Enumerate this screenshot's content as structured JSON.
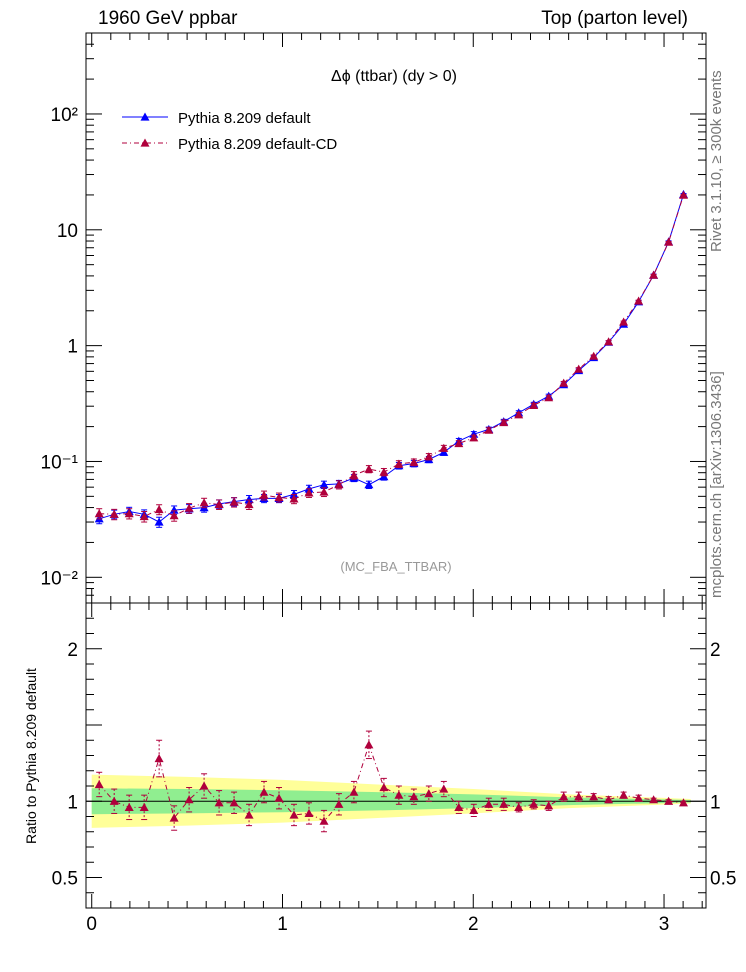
{
  "header": {
    "left": "1960 GeV ppbar",
    "right": "Top (parton level)"
  },
  "side_text": {
    "rivet": "Rivet 3.1.10, ≥ 300k events",
    "mcplots": "mcplots.cern.ch [arXiv:1306.3436]"
  },
  "chart_data": [
    {
      "type": "line",
      "title": "Δϕ (ttbar) (dy > 0)",
      "watermark": "(MC_FBA_TTBAR)",
      "yscale": "log",
      "ylim": [
        0.006,
        500
      ],
      "xlim": [
        -0.03,
        3.22
      ],
      "y_ticks": [
        {
          "v": 0.01,
          "label": "10⁻²"
        },
        {
          "v": 0.1,
          "label": "10⁻¹"
        },
        {
          "v": 1,
          "label": "1"
        },
        {
          "v": 10,
          "label": "10"
        },
        {
          "v": 100,
          "label": "10²"
        }
      ],
      "legend": {
        "position": "top-left"
      },
      "x": [
        0.0393,
        0.1178,
        0.1963,
        0.2749,
        0.3534,
        0.432,
        0.5105,
        0.589,
        0.6676,
        0.7461,
        0.8247,
        0.9032,
        0.9817,
        1.0603,
        1.1388,
        1.2174,
        1.2959,
        1.3744,
        1.453,
        1.5315,
        1.6101,
        1.6886,
        1.7671,
        1.8457,
        1.9242,
        2.0028,
        2.0813,
        2.1598,
        2.2384,
        2.3169,
        2.3955,
        2.474,
        2.5525,
        2.6311,
        2.7096,
        2.7882,
        2.8667,
        2.9452,
        3.0238,
        3.1023
      ],
      "series": [
        {
          "name": "Pythia 8.209 default",
          "color": "#0000ff",
          "marker": "triangle",
          "line": "solid",
          "values": [
            0.032,
            0.035,
            0.037,
            0.035,
            0.03,
            0.038,
            0.039,
            0.04,
            0.043,
            0.045,
            0.047,
            0.048,
            0.048,
            0.052,
            0.058,
            0.063,
            0.064,
            0.072,
            0.063,
            0.074,
            0.092,
            0.096,
            0.104,
            0.12,
            0.15,
            0.172,
            0.189,
            0.221,
            0.263,
            0.312,
            0.367,
            0.46,
            0.61,
            0.79,
            1.07,
            1.53,
            2.39,
            4.06,
            7.87,
            20.2
          ],
          "errors": [
            0.003,
            0.003,
            0.0032,
            0.0032,
            0.003,
            0.0033,
            0.0034,
            0.0035,
            0.0036,
            0.0037,
            0.0038,
            0.0039,
            0.0039,
            0.0041,
            0.0043,
            0.0046,
            0.0046,
            0.005,
            0.0046,
            0.005,
            0.006,
            0.0061,
            0.0064,
            0.007,
            0.008,
            0.009,
            0.009,
            0.01,
            0.011,
            0.012,
            0.014,
            0.016,
            0.02,
            0.024,
            0.03,
            0.04,
            0.06,
            0.09,
            0.16,
            0.35
          ]
        },
        {
          "name": "Pythia 8.209 default-CD",
          "color": "#b0003c",
          "marker": "triangle",
          "line": "dash-dot",
          "values": [
            0.0355,
            0.035,
            0.0355,
            0.0335,
            0.0385,
            0.034,
            0.0395,
            0.044,
            0.0425,
            0.0445,
            0.0425,
            0.051,
            0.049,
            0.0475,
            0.0535,
            0.0545,
            0.063,
            0.076,
            0.086,
            0.081,
            0.095,
            0.0985,
            0.11,
            0.13,
            0.143,
            0.16,
            0.186,
            0.217,
            0.253,
            0.305,
            0.356,
            0.475,
            0.627,
            0.81,
            1.08,
            1.6,
            2.43,
            4.06,
            7.83,
            19.9
          ],
          "errors": [
            0.0036,
            0.0036,
            0.0036,
            0.0035,
            0.0038,
            0.0035,
            0.0038,
            0.0041,
            0.004,
            0.0041,
            0.004,
            0.0045,
            0.0044,
            0.0043,
            0.0046,
            0.0047,
            0.0051,
            0.0057,
            0.0061,
            0.0059,
            0.0065,
            0.0066,
            0.007,
            0.0077,
            0.0082,
            0.0087,
            0.0095,
            0.0103,
            0.0112,
            0.0124,
            0.0135,
            0.0157,
            0.0183,
            0.021,
            0.0245,
            0.03,
            0.04,
            0.06,
            0.1,
            0.2
          ]
        }
      ]
    },
    {
      "type": "line",
      "ylabel": "Ratio to Pythia 8.209 default",
      "ylim": [
        0.3,
        2.3
      ],
      "xlim": [
        -0.03,
        3.22
      ],
      "y_ticks": [
        {
          "v": 0.5,
          "label": "0.5"
        },
        {
          "v": 1,
          "label": "1"
        },
        {
          "v": 2,
          "label": "2"
        }
      ],
      "x_ticks": [
        {
          "v": 0,
          "label": "0"
        },
        {
          "v": 1,
          "label": "1"
        },
        {
          "v": 2,
          "label": "2"
        },
        {
          "v": 3,
          "label": "3"
        }
      ],
      "reference_line": 1,
      "bands": {
        "inner_color": "#90ee90",
        "outer_color": "#ffff99",
        "x": [
          0.0,
          0.5,
          1.0,
          1.5,
          2.0,
          2.5,
          3.0,
          3.14
        ],
        "inner_halfwidth": [
          0.085,
          0.08,
          0.072,
          0.06,
          0.045,
          0.025,
          0.012,
          0.008
        ],
        "outer_halfwidth": [
          0.175,
          0.16,
          0.14,
          0.11,
          0.08,
          0.045,
          0.022,
          0.015
        ]
      },
      "series": [
        {
          "name": "Pythia 8.209 default-CD",
          "color": "#b0003c",
          "marker": "triangle",
          "line": "dash-dot",
          "values": [
            1.11,
            1.0,
            0.96,
            0.96,
            1.28,
            0.89,
            1.01,
            1.1,
            0.99,
            0.99,
            0.91,
            1.06,
            1.02,
            0.91,
            0.92,
            0.87,
            0.98,
            1.06,
            1.37,
            1.09,
            1.04,
            1.03,
            1.05,
            1.08,
            0.96,
            0.94,
            0.98,
            0.98,
            0.96,
            0.98,
            0.97,
            1.03,
            1.03,
            1.03,
            1.01,
            1.04,
            1.02,
            1.01,
            1.0,
            0.99
          ],
          "errors": [
            0.08,
            0.08,
            0.08,
            0.08,
            0.12,
            0.08,
            0.08,
            0.08,
            0.08,
            0.07,
            0.07,
            0.07,
            0.07,
            0.07,
            0.07,
            0.07,
            0.07,
            0.07,
            0.09,
            0.06,
            0.06,
            0.05,
            0.05,
            0.05,
            0.04,
            0.04,
            0.04,
            0.04,
            0.03,
            0.03,
            0.03,
            0.03,
            0.03,
            0.02,
            0.02,
            0.02,
            0.02,
            0.01,
            0.01,
            0.01
          ]
        }
      ]
    }
  ]
}
